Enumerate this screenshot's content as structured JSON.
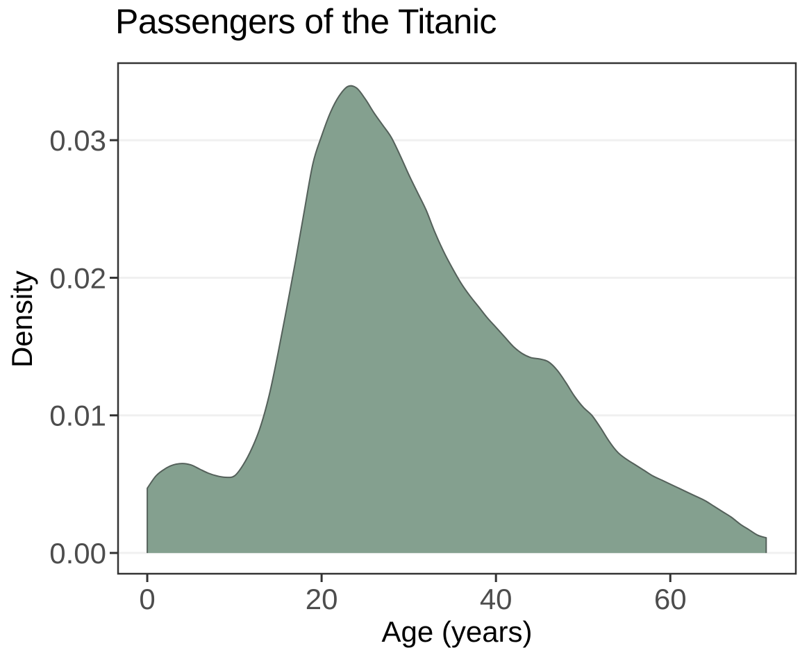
{
  "title": "Passengers of the Titanic",
  "colors": {
    "fill": "#84a08f",
    "stroke": "#54605a",
    "grid": "#f0f0f0",
    "panel_border": "#333333",
    "tick_mark": "#333333",
    "tick_label": "#4d4d4d",
    "title_text": "#000000",
    "background": "#ffffff"
  },
  "chart_data": {
    "type": "area",
    "kind": "density",
    "title": "Passengers of the Titanic",
    "xlabel": "Age (years)",
    "ylabel": "Density",
    "legend": "none",
    "grid": "horizontal-major-only",
    "xlim": [
      -3.35,
      74.4
    ],
    "ylim": [
      -0.00151,
      0.0356
    ],
    "x_ticks": {
      "values": [
        0,
        20,
        40,
        60
      ],
      "labels": [
        "0",
        "20",
        "40",
        "60"
      ]
    },
    "y_ticks": {
      "values": [
        0,
        0.01,
        0.02,
        0.03
      ],
      "labels": [
        "0.00",
        "0.01",
        "0.02",
        "0.03"
      ]
    },
    "series": [
      {
        "name": "age-density",
        "x": [
          0,
          1,
          2,
          3,
          4,
          5,
          6,
          7,
          8,
          9,
          10,
          11,
          12,
          13,
          14,
          15,
          16,
          17,
          18,
          19,
          20,
          21,
          22,
          23,
          24,
          25,
          26,
          27,
          28,
          29,
          30,
          31,
          32,
          33,
          34,
          35,
          36,
          37,
          38,
          39,
          40,
          41,
          42,
          43,
          44,
          45,
          46,
          47,
          48,
          49,
          50,
          51,
          52,
          53,
          54,
          55,
          56,
          57,
          58,
          59,
          60,
          61,
          62,
          63,
          64,
          65,
          66,
          67,
          68,
          69,
          70,
          71
        ],
        "y": [
          0.0047,
          0.0056,
          0.0061,
          0.0064,
          0.0065,
          0.0064,
          0.0061,
          0.0058,
          0.0056,
          0.0055,
          0.0056,
          0.0064,
          0.0076,
          0.0092,
          0.0115,
          0.0145,
          0.0178,
          0.0212,
          0.0248,
          0.0283,
          0.0303,
          0.032,
          0.0332,
          0.0339,
          0.0338,
          0.033,
          0.032,
          0.0311,
          0.0302,
          0.0289,
          0.0275,
          0.0262,
          0.0249,
          0.0233,
          0.0219,
          0.0207,
          0.0196,
          0.0187,
          0.0179,
          0.0171,
          0.0164,
          0.0157,
          0.015,
          0.0145,
          0.0142,
          0.0141,
          0.0139,
          0.0133,
          0.0124,
          0.0114,
          0.0106,
          0.01,
          0.0091,
          0.0081,
          0.0073,
          0.0068,
          0.0064,
          0.006,
          0.0056,
          0.0053,
          0.005,
          0.0047,
          0.0044,
          0.0041,
          0.0038,
          0.0034,
          0.003,
          0.0026,
          0.0021,
          0.0017,
          0.0013,
          0.0011
        ]
      }
    ]
  }
}
